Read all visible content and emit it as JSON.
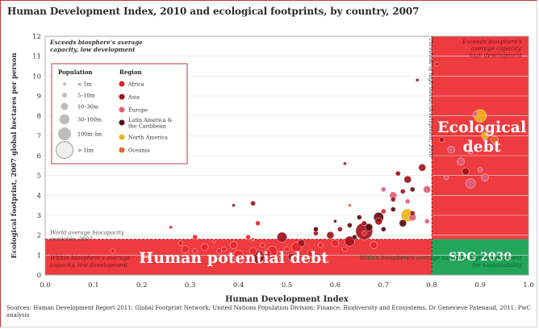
{
  "chart_data": {
    "type": "scatter",
    "title": "Human Development Index, 2010 and ecological footprints, by country, 2007",
    "xlabel": "Human Development Index",
    "ylabel": "Ecological footprint, 2007 global hectares per person",
    "xlim": [
      0.0,
      1.0
    ],
    "ylim": [
      0,
      12
    ],
    "x_ticks": [
      "0.0",
      "0.1",
      "0.2",
      "0.3",
      "0.4",
      "0.5",
      "0.6",
      "0.7",
      "0.8",
      "0.9",
      "1.0"
    ],
    "y_ticks": [
      "0",
      "1",
      "2",
      "3",
      "4",
      "5",
      "6",
      "7",
      "8",
      "9",
      "10",
      "11",
      "12"
    ],
    "thresholds": {
      "biocapacity": 1.8,
      "high_hd": 0.8,
      "threshold_label": "Threshold of high human development, 2010"
    },
    "quadrants": {
      "top_left": "Exceeds biosphere's average capacity, low development",
      "top_right": "Exceeds biosphere's average capacity, high development",
      "bottom_left": "Within biosphere's average capacity, low development",
      "bottom_right": "Within biosphere's average capacity, high development for sustainability",
      "world_avg": "World average biocapacity available, 2007"
    },
    "zone_labels": {
      "ecological_debt": "Ecological debt",
      "human_potential_debt": "Human potential debt",
      "sdg": "SDG 2030"
    },
    "legend": {
      "population_title": "Population",
      "region_title": "Region",
      "population": [
        "< 5m",
        "5–10m",
        "10–30m",
        "30–100m",
        "100m–bn",
        "> 1bn"
      ],
      "regions": [
        {
          "name": "Africa",
          "color": "#e8262b"
        },
        {
          "name": "Asia",
          "color": "#a3121c"
        },
        {
          "name": "Europe",
          "color": "#e0607a"
        },
        {
          "name": "Latin America & the Caribbean",
          "color": "#5a0c10"
        },
        {
          "name": "North America",
          "color": "#f2b21c"
        },
        {
          "name": "Oceania",
          "color": "#e2682a"
        }
      ]
    },
    "points": [
      {
        "x": 0.14,
        "y": 1.2,
        "pop": 2,
        "region": "Africa"
      },
      {
        "x": 0.26,
        "y": 2.4,
        "pop": 1,
        "region": "Africa"
      },
      {
        "x": 0.28,
        "y": 1.6,
        "pop": 2,
        "region": "Africa"
      },
      {
        "x": 0.29,
        "y": 1.3,
        "pop": 3,
        "region": "Africa"
      },
      {
        "x": 0.31,
        "y": 1.9,
        "pop": 2,
        "region": "Africa"
      },
      {
        "x": 0.31,
        "y": 1.2,
        "pop": 2,
        "region": "Africa"
      },
      {
        "x": 0.33,
        "y": 1.4,
        "pop": 3,
        "region": "Africa"
      },
      {
        "x": 0.35,
        "y": 1.7,
        "pop": 1,
        "region": "Africa"
      },
      {
        "x": 0.36,
        "y": 1.2,
        "pop": 2,
        "region": "Africa"
      },
      {
        "x": 0.37,
        "y": 1.3,
        "pop": 2,
        "region": "Africa"
      },
      {
        "x": 0.39,
        "y": 1.5,
        "pop": 3,
        "region": "Africa"
      },
      {
        "x": 0.4,
        "y": 1.0,
        "pop": 4,
        "region": "Africa"
      },
      {
        "x": 0.42,
        "y": 1.9,
        "pop": 2,
        "region": "Africa"
      },
      {
        "x": 0.43,
        "y": 1.2,
        "pop": 3,
        "region": "Africa"
      },
      {
        "x": 0.44,
        "y": 2.6,
        "pop": 2,
        "region": "Africa"
      },
      {
        "x": 0.45,
        "y": 1.5,
        "pop": 2,
        "region": "Africa"
      },
      {
        "x": 0.46,
        "y": 1.1,
        "pop": 3,
        "region": "Africa"
      },
      {
        "x": 0.47,
        "y": 1.2,
        "pop": 4,
        "region": "Africa"
      },
      {
        "x": 0.48,
        "y": 0.8,
        "pop": 2,
        "region": "Africa"
      },
      {
        "x": 0.5,
        "y": 1.3,
        "pop": 2,
        "region": "Africa"
      },
      {
        "x": 0.52,
        "y": 1.4,
        "pop": 4,
        "region": "Africa"
      },
      {
        "x": 0.55,
        "y": 1.1,
        "pop": 3,
        "region": "Africa"
      },
      {
        "x": 0.57,
        "y": 1.5,
        "pop": 2,
        "region": "Africa"
      },
      {
        "x": 0.6,
        "y": 1.6,
        "pop": 3,
        "region": "Africa"
      },
      {
        "x": 0.62,
        "y": 1.3,
        "pop": 2,
        "region": "Africa"
      },
      {
        "x": 0.66,
        "y": 2.1,
        "pop": 2,
        "region": "Africa"
      },
      {
        "x": 0.68,
        "y": 1.5,
        "pop": 3,
        "region": "Africa"
      },
      {
        "x": 0.7,
        "y": 3.2,
        "pop": 2,
        "region": "Africa"
      },
      {
        "x": 0.39,
        "y": 3.5,
        "pop": 1,
        "region": "Asia"
      },
      {
        "x": 0.43,
        "y": 3.6,
        "pop": 2,
        "region": "Asia"
      },
      {
        "x": 0.44,
        "y": 0.9,
        "pop": 5,
        "region": "Asia"
      },
      {
        "x": 0.49,
        "y": 1.9,
        "pop": 4,
        "region": "Asia"
      },
      {
        "x": 0.51,
        "y": 0.9,
        "pop": 3,
        "region": "Asia"
      },
      {
        "x": 0.53,
        "y": 1.6,
        "pop": 3,
        "region": "Asia"
      },
      {
        "x": 0.56,
        "y": 2.1,
        "pop": 2,
        "region": "Asia"
      },
      {
        "x": 0.59,
        "y": 2.0,
        "pop": 3,
        "region": "Asia"
      },
      {
        "x": 0.61,
        "y": 2.3,
        "pop": 2,
        "region": "Asia"
      },
      {
        "x": 0.63,
        "y": 1.7,
        "pop": 4,
        "region": "Asia"
      },
      {
        "x": 0.66,
        "y": 2.6,
        "pop": 2,
        "region": "Asia"
      },
      {
        "x": 0.66,
        "y": 2.2,
        "pop": 6,
        "region": "Asia"
      },
      {
        "x": 0.69,
        "y": 2.7,
        "pop": 3,
        "region": "Asia"
      },
      {
        "x": 0.72,
        "y": 3.8,
        "pop": 2,
        "region": "Asia"
      },
      {
        "x": 0.74,
        "y": 4.2,
        "pop": 2,
        "region": "Asia"
      },
      {
        "x": 0.76,
        "y": 3.1,
        "pop": 2,
        "region": "Asia"
      },
      {
        "x": 0.62,
        "y": 5.6,
        "pop": 1,
        "region": "Asia"
      },
      {
        "x": 0.73,
        "y": 5.1,
        "pop": 2,
        "region": "Asia"
      },
      {
        "x": 0.75,
        "y": 4.8,
        "pop": 3,
        "region": "Asia"
      },
      {
        "x": 0.78,
        "y": 5.4,
        "pop": 3,
        "region": "Asia"
      },
      {
        "x": 0.77,
        "y": 9.8,
        "pop": 1,
        "region": "Asia"
      },
      {
        "x": 0.81,
        "y": 10.6,
        "pop": 1,
        "region": "Asia"
      },
      {
        "x": 0.87,
        "y": 5.2,
        "pop": 3,
        "region": "Asia"
      },
      {
        "x": 0.82,
        "y": 6.8,
        "pop": 2,
        "region": "Asia"
      },
      {
        "x": 0.7,
        "y": 4.3,
        "pop": 2,
        "region": "Europe"
      },
      {
        "x": 0.72,
        "y": 4.0,
        "pop": 3,
        "region": "Europe"
      },
      {
        "x": 0.75,
        "y": 3.7,
        "pop": 2,
        "region": "Europe"
      },
      {
        "x": 0.76,
        "y": 2.9,
        "pop": 3,
        "region": "Europe"
      },
      {
        "x": 0.79,
        "y": 4.3,
        "pop": 3,
        "region": "Europe"
      },
      {
        "x": 0.79,
        "y": 2.7,
        "pop": 2,
        "region": "Europe"
      },
      {
        "x": 0.83,
        "y": 4.9,
        "pop": 2,
        "region": "Europe"
      },
      {
        "x": 0.84,
        "y": 6.3,
        "pop": 3,
        "region": "Europe"
      },
      {
        "x": 0.86,
        "y": 5.7,
        "pop": 3,
        "region": "Europe"
      },
      {
        "x": 0.88,
        "y": 6.2,
        "pop": 2,
        "region": "Europe"
      },
      {
        "x": 0.88,
        "y": 4.6,
        "pop": 4,
        "region": "Europe"
      },
      {
        "x": 0.9,
        "y": 5.3,
        "pop": 2,
        "region": "Europe"
      },
      {
        "x": 0.91,
        "y": 4.9,
        "pop": 3,
        "region": "Europe"
      },
      {
        "x": 0.89,
        "y": 8.1,
        "pop": 2,
        "region": "Europe"
      },
      {
        "x": 0.56,
        "y": 2.3,
        "pop": 2,
        "region": "Latin America & the Caribbean"
      },
      {
        "x": 0.6,
        "y": 2.7,
        "pop": 1,
        "region": "Latin America & the Caribbean"
      },
      {
        "x": 0.63,
        "y": 2.5,
        "pop": 2,
        "region": "Latin America & the Caribbean"
      },
      {
        "x": 0.64,
        "y": 1.9,
        "pop": 2,
        "region": "Latin America & the Caribbean"
      },
      {
        "x": 0.65,
        "y": 2.9,
        "pop": 2,
        "region": "Latin America & the Caribbean"
      },
      {
        "x": 0.67,
        "y": 2.4,
        "pop": 3,
        "region": "Latin America & the Caribbean"
      },
      {
        "x": 0.69,
        "y": 2.9,
        "pop": 4,
        "region": "Latin America & the Caribbean"
      },
      {
        "x": 0.7,
        "y": 2.3,
        "pop": 2,
        "region": "Latin America & the Caribbean"
      },
      {
        "x": 0.72,
        "y": 3.3,
        "pop": 2,
        "region": "Latin America & the Caribbean"
      },
      {
        "x": 0.74,
        "y": 2.6,
        "pop": 3,
        "region": "Latin America & the Caribbean"
      },
      {
        "x": 0.76,
        "y": 4.3,
        "pop": 2,
        "region": "Latin America & the Caribbean"
      },
      {
        "x": 0.75,
        "y": 3.0,
        "pop": 5,
        "region": "North America"
      },
      {
        "x": 0.9,
        "y": 8.0,
        "pop": 5,
        "region": "North America"
      },
      {
        "x": 0.91,
        "y": 7.0,
        "pop": 3,
        "region": "North America"
      },
      {
        "x": 0.43,
        "y": 1.8,
        "pop": 1,
        "region": "Oceania"
      },
      {
        "x": 0.63,
        "y": 3.5,
        "pop": 1,
        "region": "Oceania"
      },
      {
        "x": 0.93,
        "y": 6.8,
        "pop": 3,
        "region": "Oceania"
      }
    ]
  },
  "source": "Sources: Human Development Report 2011; Global Footprint Network; United Nations Population Division; Finance, Biodiversity and Ecosystems, Dr Genevieve Patenaud, 2011; PwC analysis",
  "colors": {
    "frame": "#c23a3a",
    "debt_red": "#ee3b3f",
    "sdg_green": "#23a55a",
    "dashed": "#7a1010",
    "axis_text": "#333333"
  }
}
